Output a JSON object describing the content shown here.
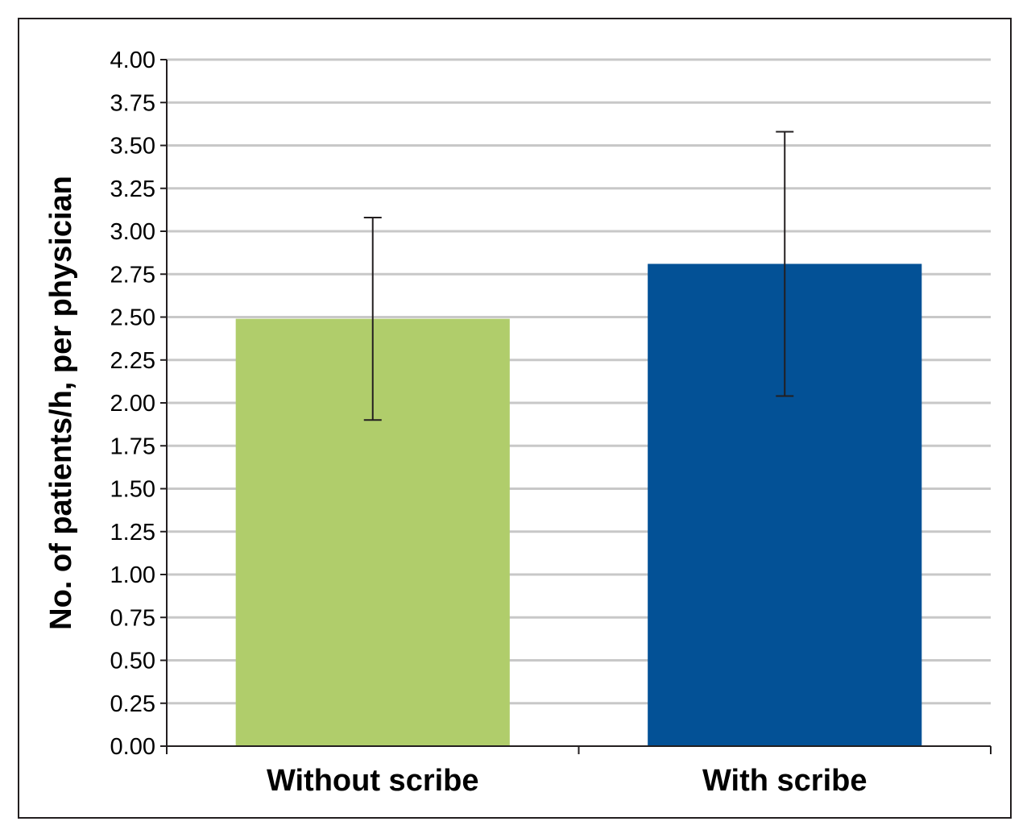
{
  "chart_data": {
    "type": "bar",
    "title": "",
    "xlabel": "",
    "ylabel": "No. of patients/h, per physician",
    "categories": [
      "Without scribe",
      "With scribe"
    ],
    "values": [
      2.49,
      2.81
    ],
    "error_bars": [
      {
        "low": 1.9,
        "high": 3.08
      },
      {
        "low": 2.04,
        "high": 3.58
      }
    ],
    "colors": [
      "#b0cd6b",
      "#035196"
    ],
    "ylim": [
      0,
      4
    ],
    "yticks": [
      "0.00",
      "0.25",
      "0.50",
      "0.75",
      "1.00",
      "1.25",
      "1.50",
      "1.75",
      "2.00",
      "2.25",
      "2.50",
      "2.75",
      "3.00",
      "3.25",
      "3.50",
      "3.75",
      "4.00"
    ],
    "grid": true,
    "gridline_color": "#c8c8c8",
    "axis_color": "#231f20"
  }
}
